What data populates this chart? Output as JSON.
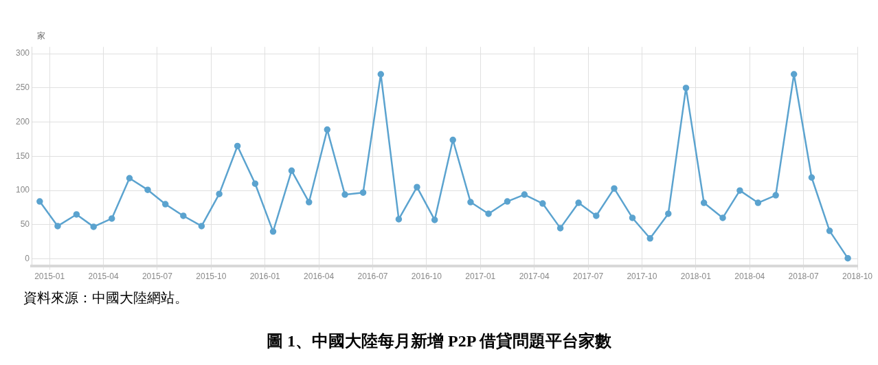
{
  "chart_data": {
    "type": "line",
    "title": "圖 1、中國大陸每月新增 P2P 借貸問題平台家數",
    "ylabel": "家",
    "annotations": [
      "資料來源：中國大陸網站。"
    ],
    "x": [
      "2014-12-15",
      "2015-01-15",
      "2015-02-15",
      "2015-03-15",
      "2015-04-15",
      "2015-05-15",
      "2015-06-15",
      "2015-07-15",
      "2015-08-15",
      "2015-09-15",
      "2015-10-15",
      "2015-11-15",
      "2015-12-15",
      "2016-01-15",
      "2016-02-15",
      "2016-03-15",
      "2016-04-15",
      "2016-05-15",
      "2016-06-15",
      "2016-07-15",
      "2016-08-15",
      "2016-09-15",
      "2016-10-15",
      "2016-11-15",
      "2016-12-15",
      "2017-01-15",
      "2017-02-15",
      "2017-03-15",
      "2017-04-15",
      "2017-05-15",
      "2017-06-15",
      "2017-07-15",
      "2017-08-15",
      "2017-09-15",
      "2017-10-15",
      "2017-11-15",
      "2017-12-15",
      "2018-01-15",
      "2018-02-15",
      "2018-03-15",
      "2018-04-15",
      "2018-05-15",
      "2018-06-15",
      "2018-07-15",
      "2018-08-15",
      "2018-09-15"
    ],
    "series": [
      {
        "color": "#5ba3cf",
        "values": [
          84,
          48,
          65,
          47,
          59,
          118,
          101,
          80,
          63,
          48,
          95,
          165,
          110,
          40,
          129,
          83,
          189,
          94,
          97,
          270,
          58,
          105,
          57,
          174,
          83,
          66,
          84,
          94,
          81,
          45,
          82,
          63,
          103,
          60,
          30,
          66,
          250,
          82,
          60,
          100,
          82,
          93,
          270,
          119,
          41,
          1
        ]
      }
    ],
    "xlim": [
      "2014-12",
      "2018-10"
    ],
    "xticks": [
      "2015-01",
      "2015-04",
      "2015-07",
      "2015-10",
      "2016-01",
      "2016-04",
      "2016-07",
      "2016-10",
      "2017-01",
      "2017-04",
      "2017-07",
      "2017-10",
      "2018-01",
      "2018-04",
      "2018-07",
      "2018-10"
    ],
    "ylim": [
      -10,
      310
    ],
    "yticks": [
      0,
      50,
      100,
      150,
      200,
      250,
      300
    ],
    "grid": true,
    "legend": false,
    "marker": "circle",
    "line_style": "solid"
  }
}
